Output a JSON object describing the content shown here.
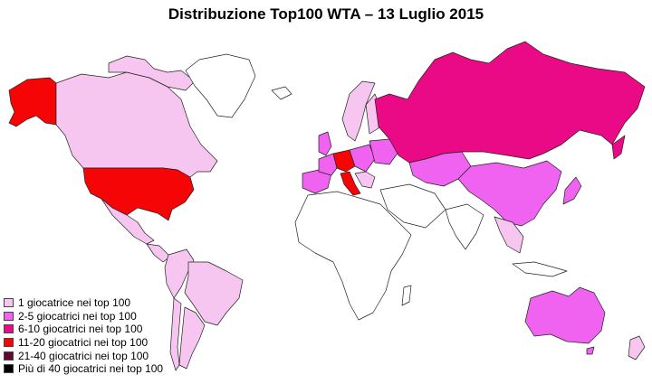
{
  "title": "Distribuzione Top100 WTA – 13 Luglio 2015",
  "legend": [
    {
      "label": "1 giocatrice nei top 100",
      "color": "#f7c6f0"
    },
    {
      "label": "2-5 giocatrici nei top 100",
      "color": "#f062f0"
    },
    {
      "label": "6-10 giocatrici nei top 100",
      "color": "#ea0a85"
    },
    {
      "label": "11-20 giocatrici nei top 100",
      "color": "#f50505"
    },
    {
      "label": "21-40 giocatrici nei top 100",
      "color": "#5e0a2e"
    },
    {
      "label": "Più di 40 giocatrici nei top 100",
      "color": "#000000"
    }
  ],
  "regions": [
    {
      "name": "alaska",
      "category": 3
    },
    {
      "name": "canada",
      "category": 0
    },
    {
      "name": "usa",
      "category": 3
    },
    {
      "name": "mexico",
      "category": 0
    },
    {
      "name": "south-america-west",
      "category": 0
    },
    {
      "name": "brazil",
      "category": 0
    },
    {
      "name": "argentina",
      "category": 0
    },
    {
      "name": "chile",
      "category": 0
    },
    {
      "name": "greenland",
      "category": -1
    },
    {
      "name": "iceland",
      "category": -1
    },
    {
      "name": "scandinavia",
      "category": 0
    },
    {
      "name": "finland",
      "category": 0
    },
    {
      "name": "western-europe",
      "category": 1
    },
    {
      "name": "spain-portugal",
      "category": 1
    },
    {
      "name": "germany-czech",
      "category": 3
    },
    {
      "name": "italy",
      "category": 3
    },
    {
      "name": "eastern-europe",
      "category": 1
    },
    {
      "name": "ukraine-belarus",
      "category": 1
    },
    {
      "name": "balkans",
      "category": 0
    },
    {
      "name": "russia",
      "category": 2
    },
    {
      "name": "kazakhstan",
      "category": 1
    },
    {
      "name": "china",
      "category": 1
    },
    {
      "name": "japan",
      "category": 1
    },
    {
      "name": "australia",
      "category": 1
    },
    {
      "name": "new-zealand",
      "category": 0
    },
    {
      "name": "africa",
      "category": -1
    },
    {
      "name": "middle-east",
      "category": -1
    },
    {
      "name": "india",
      "category": -1
    },
    {
      "name": "southeast-asia",
      "category": 0
    },
    {
      "name": "indonesia",
      "category": -1
    }
  ]
}
